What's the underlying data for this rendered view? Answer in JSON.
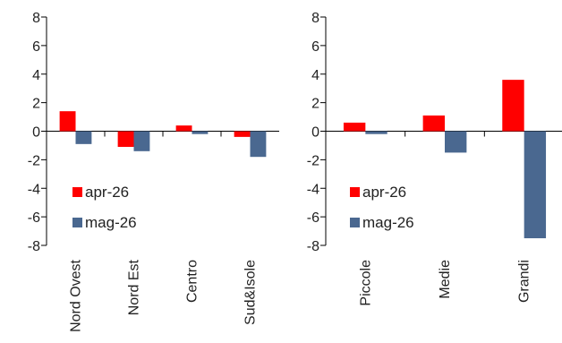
{
  "chart_data": [
    {
      "type": "bar",
      "categories": [
        "Nord Ovest",
        "Nord Est",
        "Centro",
        "Sud&Isole"
      ],
      "series": [
        {
          "name": "apr-26",
          "values": [
            1.4,
            -1.1,
            0.4,
            -0.4
          ],
          "color": "#ff0000"
        },
        {
          "name": "mag-26",
          "values": [
            -0.9,
            -1.4,
            -0.2,
            -1.8
          ],
          "color": "#4a6890"
        }
      ],
      "yticks": [
        "8",
        "6",
        "4",
        "2",
        "0",
        "-2",
        "-4",
        "-6",
        "-8"
      ],
      "ylim": [
        -8,
        8
      ],
      "grid": false,
      "legend": "inside lower-left"
    },
    {
      "type": "bar",
      "categories": [
        "Piccole",
        "Medie",
        "Grandi"
      ],
      "series": [
        {
          "name": "apr-26",
          "values": [
            0.6,
            1.1,
            3.6
          ],
          "color": "#ff0000"
        },
        {
          "name": "mag-26",
          "values": [
            -0.2,
            -1.5,
            -7.5
          ],
          "color": "#4a6890"
        }
      ],
      "yticks": [
        "8",
        "6",
        "4",
        "2",
        "0",
        "-2",
        "-4",
        "-6",
        "-8"
      ],
      "ylim": [
        -8,
        8
      ],
      "grid": false,
      "legend": "inside lower-left"
    }
  ]
}
